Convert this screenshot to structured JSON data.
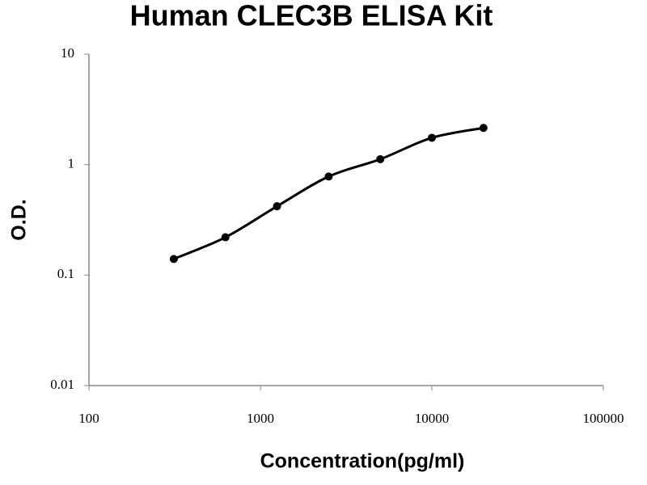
{
  "chart_data": {
    "type": "scatter",
    "title": "Human CLEC3B ELISA Kit",
    "x_label": "Concentration(pg/ml)",
    "y_label": "O.D.",
    "x": [
      312.5,
      625,
      1250,
      2500,
      5000,
      10000,
      20000
    ],
    "values": [
      0.14,
      0.22,
      0.42,
      0.78,
      1.12,
      1.75,
      2.15
    ],
    "color": "#000000",
    "xlim": [
      100,
      100000
    ],
    "xticks": [
      100,
      1000,
      10000,
      100000
    ],
    "ylim": [
      0.01,
      10
    ],
    "yticks": [
      0.01,
      0.1,
      1,
      10
    ],
    "log_x": true,
    "log_y": true,
    "grid": false,
    "fit_curve": true
  }
}
